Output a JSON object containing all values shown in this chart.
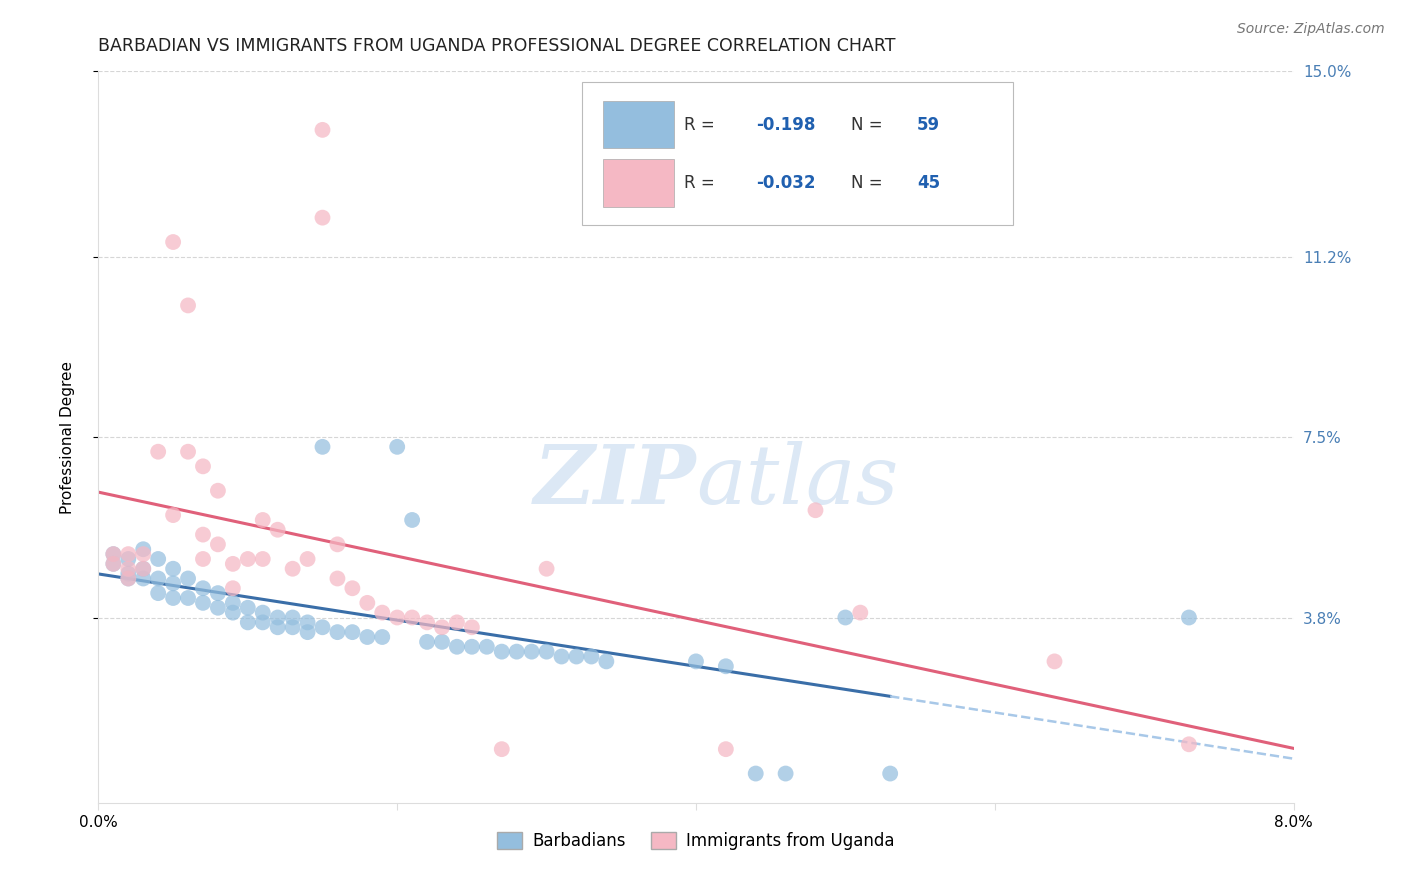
{
  "title": "BARBADIAN VS IMMIGRANTS FROM UGANDA PROFESSIONAL DEGREE CORRELATION CHART",
  "source": "Source: ZipAtlas.com",
  "ylabel_label": "Professional Degree",
  "xlim": [
    0.0,
    0.08
  ],
  "ylim": [
    0.0,
    0.15
  ],
  "xtick_vals": [
    0.0,
    0.02,
    0.04,
    0.06,
    0.08
  ],
  "xtick_labels": [
    "0.0%",
    "",
    "",
    "",
    "8.0%"
  ],
  "ytick_positions": [
    0.038,
    0.075,
    0.112,
    0.15
  ],
  "ytick_labels": [
    "3.8%",
    "7.5%",
    "11.2%",
    "15.0%"
  ],
  "blue_color": "#94bede",
  "pink_color": "#f5b8c4",
  "blue_line_color": "#3a6ea8",
  "pink_line_color": "#e0607a",
  "blue_dashed_color": "#a8c8e8",
  "R_blue": -0.198,
  "N_blue": 59,
  "R_pink": -0.032,
  "N_pink": 45,
  "blue_points": [
    [
      0.001,
      0.051
    ],
    [
      0.001,
      0.049
    ],
    [
      0.002,
      0.05
    ],
    [
      0.002,
      0.047
    ],
    [
      0.002,
      0.046
    ],
    [
      0.003,
      0.052
    ],
    [
      0.003,
      0.048
    ],
    [
      0.003,
      0.046
    ],
    [
      0.004,
      0.05
    ],
    [
      0.004,
      0.046
    ],
    [
      0.004,
      0.043
    ],
    [
      0.005,
      0.048
    ],
    [
      0.005,
      0.045
    ],
    [
      0.005,
      0.042
    ],
    [
      0.006,
      0.046
    ],
    [
      0.006,
      0.042
    ],
    [
      0.007,
      0.044
    ],
    [
      0.007,
      0.041
    ],
    [
      0.008,
      0.043
    ],
    [
      0.008,
      0.04
    ],
    [
      0.009,
      0.041
    ],
    [
      0.009,
      0.039
    ],
    [
      0.01,
      0.04
    ],
    [
      0.01,
      0.037
    ],
    [
      0.011,
      0.039
    ],
    [
      0.011,
      0.037
    ],
    [
      0.012,
      0.038
    ],
    [
      0.012,
      0.036
    ],
    [
      0.013,
      0.038
    ],
    [
      0.013,
      0.036
    ],
    [
      0.014,
      0.037
    ],
    [
      0.014,
      0.035
    ],
    [
      0.015,
      0.073
    ],
    [
      0.015,
      0.036
    ],
    [
      0.016,
      0.035
    ],
    [
      0.017,
      0.035
    ],
    [
      0.018,
      0.034
    ],
    [
      0.019,
      0.034
    ],
    [
      0.02,
      0.073
    ],
    [
      0.021,
      0.058
    ],
    [
      0.022,
      0.033
    ],
    [
      0.023,
      0.033
    ],
    [
      0.024,
      0.032
    ],
    [
      0.025,
      0.032
    ],
    [
      0.026,
      0.032
    ],
    [
      0.027,
      0.031
    ],
    [
      0.028,
      0.031
    ],
    [
      0.029,
      0.031
    ],
    [
      0.03,
      0.031
    ],
    [
      0.031,
      0.03
    ],
    [
      0.032,
      0.03
    ],
    [
      0.033,
      0.03
    ],
    [
      0.034,
      0.029
    ],
    [
      0.04,
      0.029
    ],
    [
      0.042,
      0.028
    ],
    [
      0.044,
      0.006
    ],
    [
      0.046,
      0.006
    ],
    [
      0.05,
      0.038
    ],
    [
      0.053,
      0.006
    ],
    [
      0.073,
      0.038
    ]
  ],
  "pink_points": [
    [
      0.001,
      0.051
    ],
    [
      0.001,
      0.049
    ],
    [
      0.002,
      0.051
    ],
    [
      0.002,
      0.048
    ],
    [
      0.002,
      0.046
    ],
    [
      0.003,
      0.051
    ],
    [
      0.003,
      0.048
    ],
    [
      0.004,
      0.072
    ],
    [
      0.005,
      0.059
    ],
    [
      0.005,
      0.115
    ],
    [
      0.006,
      0.102
    ],
    [
      0.006,
      0.072
    ],
    [
      0.007,
      0.069
    ],
    [
      0.007,
      0.055
    ],
    [
      0.007,
      0.05
    ],
    [
      0.008,
      0.064
    ],
    [
      0.008,
      0.053
    ],
    [
      0.009,
      0.049
    ],
    [
      0.009,
      0.044
    ],
    [
      0.01,
      0.05
    ],
    [
      0.011,
      0.058
    ],
    [
      0.011,
      0.05
    ],
    [
      0.012,
      0.056
    ],
    [
      0.013,
      0.048
    ],
    [
      0.014,
      0.05
    ],
    [
      0.015,
      0.138
    ],
    [
      0.015,
      0.12
    ],
    [
      0.016,
      0.053
    ],
    [
      0.016,
      0.046
    ],
    [
      0.017,
      0.044
    ],
    [
      0.018,
      0.041
    ],
    [
      0.019,
      0.039
    ],
    [
      0.02,
      0.038
    ],
    [
      0.021,
      0.038
    ],
    [
      0.022,
      0.037
    ],
    [
      0.023,
      0.036
    ],
    [
      0.024,
      0.037
    ],
    [
      0.025,
      0.036
    ],
    [
      0.027,
      0.011
    ],
    [
      0.03,
      0.048
    ],
    [
      0.042,
      0.011
    ],
    [
      0.048,
      0.06
    ],
    [
      0.051,
      0.039
    ],
    [
      0.064,
      0.029
    ],
    [
      0.073,
      0.012
    ]
  ],
  "background_color": "#ffffff",
  "grid_color": "#cccccc",
  "watermark_color": "#dce8f5",
  "legend_labels": [
    "Barbadians",
    "Immigrants from Uganda"
  ],
  "title_fontsize": 12.5,
  "axis_label_fontsize": 11,
  "tick_fontsize": 11,
  "source_fontsize": 10
}
